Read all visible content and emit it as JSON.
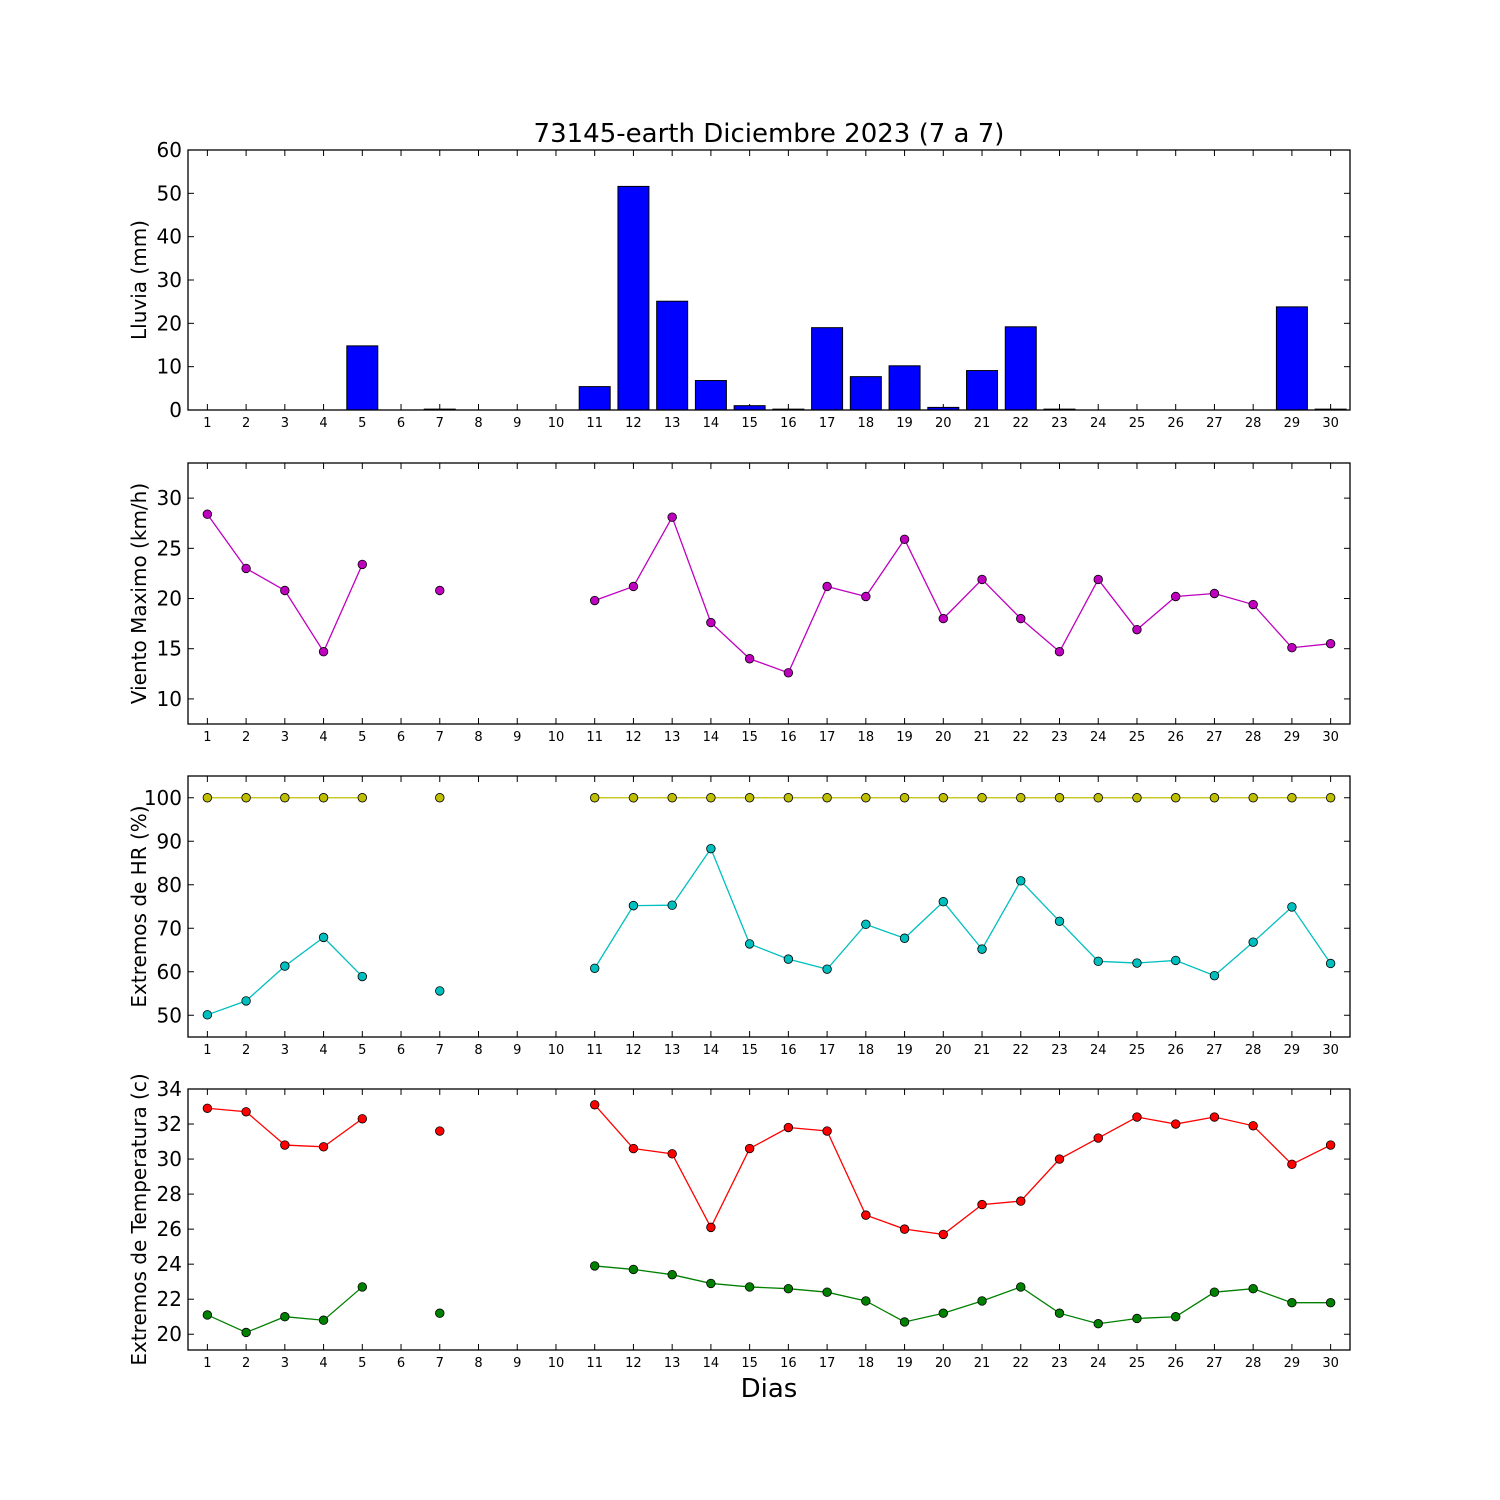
{
  "chart_data": {
    "title": "73145-earth Diciembre 2023  (7 a 7)",
    "xlabel": "Dias",
    "days": [
      1,
      2,
      3,
      4,
      5,
      6,
      7,
      8,
      9,
      10,
      11,
      12,
      13,
      14,
      15,
      16,
      17,
      18,
      19,
      20,
      21,
      22,
      23,
      24,
      25,
      26,
      27,
      28,
      29,
      30
    ],
    "panels": [
      {
        "type": "bar",
        "ylabel": "Lluvia (mm)",
        "ylim": [
          0,
          60
        ],
        "yticks": [
          0,
          10,
          20,
          30,
          40,
          50,
          60
        ],
        "series": [
          {
            "color": "#0000ff",
            "values": [
              0,
              0,
              0,
              0,
              14.8,
              0,
              0.2,
              0,
              0,
              0,
              5.4,
              51.6,
              25.1,
              6.8,
              1.0,
              0.2,
              19.0,
              7.7,
              10.2,
              0.6,
              9.1,
              19.2,
              0.2,
              0,
              0,
              0,
              0,
              0,
              23.8,
              0.2
            ]
          }
        ]
      },
      {
        "type": "line",
        "ylabel": "Viento Maximo (km/h)",
        "ylim": [
          7.5,
          33.5
        ],
        "yticks": [
          10,
          15,
          20,
          25,
          30
        ],
        "series": [
          {
            "color": "#bf00bf",
            "values": [
              28.4,
              23.0,
              20.8,
              14.7,
              23.4,
              null,
              20.8,
              null,
              null,
              null,
              19.8,
              21.2,
              28.1,
              17.6,
              14.0,
              12.6,
              21.2,
              20.2,
              25.9,
              18.0,
              21.9,
              18.0,
              14.7,
              21.9,
              16.9,
              20.2,
              20.5,
              19.4,
              15.1,
              15.5
            ]
          }
        ]
      },
      {
        "type": "line",
        "ylabel": "Extremos de HR (%)",
        "ylim": [
          45,
          105
        ],
        "yticks": [
          50,
          60,
          70,
          80,
          90,
          100
        ],
        "series": [
          {
            "color": "#bfbf00",
            "values": [
              100,
              100,
              100,
              100,
              100,
              null,
              100,
              null,
              null,
              null,
              100,
              100,
              100,
              100,
              100,
              100,
              100,
              100,
              100,
              100,
              100,
              100,
              100,
              100,
              100,
              100,
              100,
              100,
              100,
              100
            ]
          },
          {
            "color": "#00bfbf",
            "values": [
              50.1,
              53.3,
              61.3,
              67.9,
              58.9,
              null,
              55.6,
              null,
              null,
              null,
              60.8,
              75.2,
              75.3,
              88.3,
              66.4,
              62.9,
              60.6,
              70.9,
              67.7,
              76.1,
              65.2,
              80.9,
              71.6,
              62.4,
              62.0,
              62.6,
              59.1,
              66.8,
              74.9,
              61.9
            ]
          }
        ]
      },
      {
        "type": "line",
        "ylabel": "Extremos de Temperatura (c)",
        "ylim": [
          19.1,
          34
        ],
        "yticks": [
          20,
          22,
          24,
          26,
          28,
          30,
          32,
          34
        ],
        "series": [
          {
            "color": "#ff0000",
            "values": [
              32.9,
              32.7,
              30.8,
              30.7,
              32.3,
              null,
              31.6,
              null,
              null,
              null,
              33.1,
              30.6,
              30.3,
              26.1,
              30.6,
              31.8,
              31.6,
              26.8,
              26.0,
              25.7,
              27.4,
              27.6,
              30.0,
              31.2,
              32.4,
              32.0,
              32.4,
              31.9,
              29.7,
              30.8
            ]
          },
          {
            "color": "#008000",
            "values": [
              21.1,
              20.1,
              21.0,
              20.8,
              22.7,
              null,
              21.2,
              null,
              null,
              null,
              23.9,
              23.7,
              23.4,
              22.9,
              22.7,
              22.6,
              22.4,
              21.9,
              20.7,
              21.2,
              21.9,
              22.7,
              21.2,
              20.6,
              20.9,
              21.0,
              22.4,
              22.6,
              21.8,
              21.8
            ]
          }
        ]
      }
    ]
  }
}
